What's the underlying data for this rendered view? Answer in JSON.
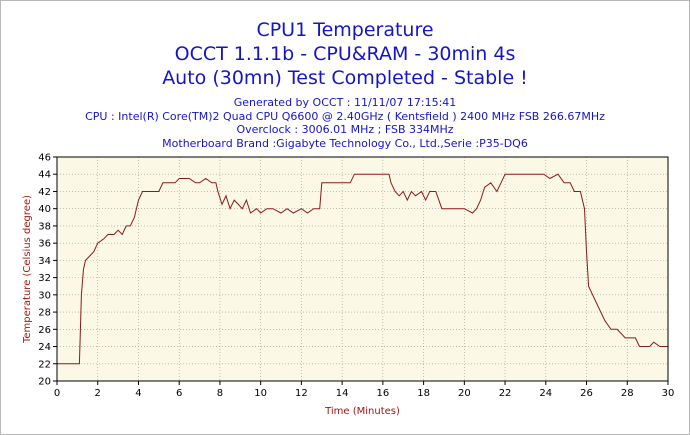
{
  "titles": [
    "CPU1 Temperature",
    "OCCT 1.1.1b - CPU&RAM - 30min 4s",
    "Auto (30mn) Test Completed - Stable !"
  ],
  "info": [
    "Generated by OCCT : 11/11/07 17:15:41",
    "CPU : Intel(R) Core(TM)2 Quad CPU Q6600 @ 2.40GHz ( Kentsfield ) 2400 MHz FSB 266.67MHz",
    "Overclock : 3006.01 MHz ; FSB 334MHz",
    "Motherboard Brand :Gigabyte Technology Co., Ltd.,Serie :P35-DQ6"
  ],
  "colors": {
    "line": "#8b1a1a",
    "plot_bg": "#fcf8e6",
    "grid": "#999999",
    "title": "#1515c8",
    "axis_label": "#a01818"
  },
  "chart_data": {
    "type": "line",
    "xlabel": "Time (Minutes)",
    "ylabel": "Temperature (Celsius degree)",
    "xlim": [
      0,
      30
    ],
    "ylim": [
      20,
      46
    ],
    "xticks": [
      0,
      2,
      4,
      6,
      8,
      10,
      12,
      14,
      16,
      18,
      20,
      22,
      24,
      26,
      28,
      30
    ],
    "yticks": [
      20,
      22,
      24,
      26,
      28,
      30,
      32,
      34,
      36,
      38,
      40,
      42,
      44,
      46
    ],
    "grid": true,
    "series": [
      {
        "points": [
          [
            0,
            22
          ],
          [
            1.1,
            22
          ],
          [
            1.2,
            30
          ],
          [
            1.3,
            33
          ],
          [
            1.4,
            34
          ],
          [
            1.6,
            34.5
          ],
          [
            1.8,
            35
          ],
          [
            2.0,
            36
          ],
          [
            2.3,
            36.5
          ],
          [
            2.5,
            37
          ],
          [
            2.8,
            37
          ],
          [
            3.0,
            37.5
          ],
          [
            3.2,
            37
          ],
          [
            3.4,
            38
          ],
          [
            3.6,
            38
          ],
          [
            3.8,
            39
          ],
          [
            3.9,
            40
          ],
          [
            4.0,
            41
          ],
          [
            4.2,
            42
          ],
          [
            4.6,
            42
          ],
          [
            5.0,
            42
          ],
          [
            5.2,
            43
          ],
          [
            5.8,
            43
          ],
          [
            6.0,
            43.5
          ],
          [
            6.5,
            43.5
          ],
          [
            6.8,
            43
          ],
          [
            7.0,
            43
          ],
          [
            7.3,
            43.5
          ],
          [
            7.6,
            43
          ],
          [
            7.8,
            43
          ],
          [
            7.9,
            42
          ],
          [
            8.1,
            40.5
          ],
          [
            8.3,
            41.5
          ],
          [
            8.5,
            40
          ],
          [
            8.7,
            41
          ],
          [
            8.9,
            40.5
          ],
          [
            9.1,
            40
          ],
          [
            9.3,
            41
          ],
          [
            9.5,
            39.5
          ],
          [
            9.8,
            40
          ],
          [
            10.0,
            39.5
          ],
          [
            10.3,
            40
          ],
          [
            10.6,
            40
          ],
          [
            11.0,
            39.5
          ],
          [
            11.3,
            40
          ],
          [
            11.6,
            39.5
          ],
          [
            12.0,
            40
          ],
          [
            12.3,
            39.5
          ],
          [
            12.6,
            40
          ],
          [
            12.9,
            40
          ],
          [
            13.0,
            43
          ],
          [
            13.4,
            43
          ],
          [
            14.0,
            43
          ],
          [
            14.4,
            43
          ],
          [
            14.6,
            44
          ],
          [
            15.5,
            44
          ],
          [
            16.3,
            44
          ],
          [
            16.4,
            43
          ],
          [
            16.6,
            42
          ],
          [
            16.8,
            41.5
          ],
          [
            17.0,
            42
          ],
          [
            17.2,
            41
          ],
          [
            17.4,
            42
          ],
          [
            17.6,
            41.5
          ],
          [
            17.9,
            42
          ],
          [
            18.1,
            41
          ],
          [
            18.3,
            42
          ],
          [
            18.6,
            42
          ],
          [
            18.9,
            40
          ],
          [
            19.5,
            40
          ],
          [
            20.0,
            40
          ],
          [
            20.4,
            39.5
          ],
          [
            20.6,
            40
          ],
          [
            20.8,
            41
          ],
          [
            21.0,
            42.5
          ],
          [
            21.3,
            43
          ],
          [
            21.6,
            42
          ],
          [
            21.8,
            43
          ],
          [
            22.0,
            44
          ],
          [
            23.0,
            44
          ],
          [
            23.9,
            44
          ],
          [
            24.2,
            43.5
          ],
          [
            24.6,
            44
          ],
          [
            24.9,
            43
          ],
          [
            25.2,
            43
          ],
          [
            25.4,
            42
          ],
          [
            25.7,
            42
          ],
          [
            25.9,
            40
          ],
          [
            26.0,
            35
          ],
          [
            26.1,
            31
          ],
          [
            26.3,
            30
          ],
          [
            26.5,
            29
          ],
          [
            26.7,
            28
          ],
          [
            26.9,
            27
          ],
          [
            27.2,
            26
          ],
          [
            27.5,
            26
          ],
          [
            27.9,
            25
          ],
          [
            28.4,
            25
          ],
          [
            28.6,
            24
          ],
          [
            29.1,
            24
          ],
          [
            29.3,
            24.5
          ],
          [
            29.6,
            24
          ],
          [
            30.0,
            24
          ]
        ]
      }
    ]
  }
}
